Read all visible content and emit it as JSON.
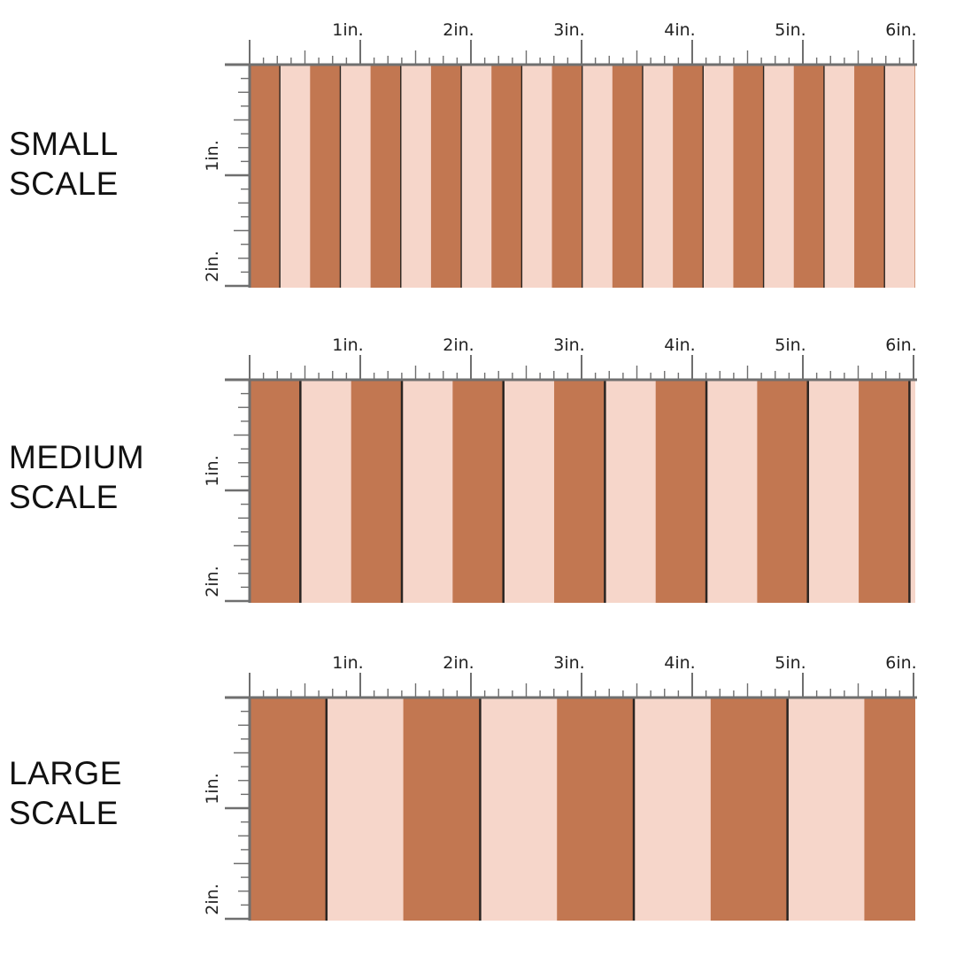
{
  "colors": {
    "dark_stripe": "#c27751",
    "light_stripe": "#f6d6ca",
    "divider": "#2a2522",
    "ruler": "#6f6f6f",
    "text": "#111111"
  },
  "ruler": {
    "h_labels": [
      "1in.",
      "2in.",
      "3in.",
      "4in.",
      "5in.",
      "6in."
    ],
    "v_labels": [
      "1in.",
      "2in."
    ]
  },
  "panels": [
    {
      "label_line1": "SMALL",
      "label_line2": "SCALE",
      "stripes_per_inch": 1.83,
      "bold_dividers": false
    },
    {
      "label_line1": "MEDIUM",
      "label_line2": "SCALE",
      "stripes_per_inch": 1.09,
      "bold_dividers": true
    },
    {
      "label_line1": "LARGE",
      "label_line2": "SCALE",
      "stripes_per_inch": 0.72,
      "bold_dividers": true
    }
  ]
}
